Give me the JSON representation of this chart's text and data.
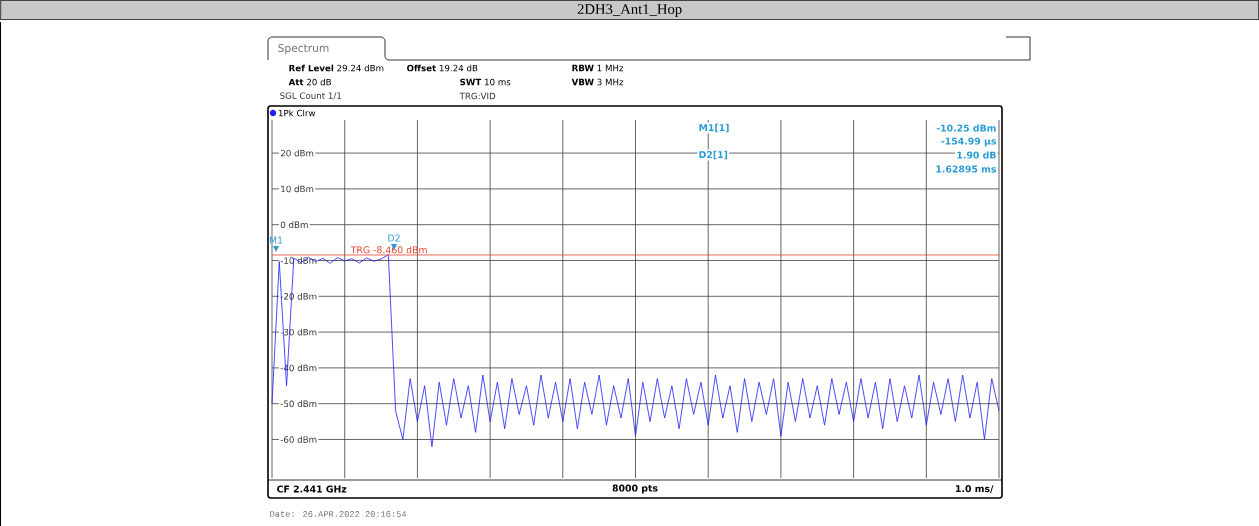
{
  "chart_data": {
    "type": "line",
    "title": "2DH3_Ant1_Hop",
    "categories": [
      null,
      null,
      null,
      null,
      null,
      null,
      null,
      null,
      null,
      null,
      null,
      null,
      null,
      null,
      null,
      null,
      null,
      null,
      null,
      null,
      null,
      null,
      null,
      null,
      null,
      null,
      null,
      null,
      null,
      null,
      null,
      null,
      null,
      null,
      null,
      null,
      null,
      null,
      null,
      null,
      null,
      null,
      null,
      null,
      null,
      null,
      null,
      null,
      null,
      null,
      null,
      null,
      null,
      null,
      null,
      null,
      null,
      null,
      null,
      null,
      null,
      null,
      null,
      null,
      null,
      null,
      null,
      null,
      null,
      null,
      null,
      null,
      null,
      null,
      null,
      null,
      null,
      null,
      null,
      null,
      null,
      null,
      null,
      null,
      null,
      null,
      null,
      null,
      null,
      null,
      null,
      null,
      null,
      null,
      null,
      null,
      null,
      null,
      null,
      null,
      null
    ],
    "series": [
      {
        "name": "1Pk Clrw",
        "color": "#1f1fff",
        "values": [
          -50,
          -10.3,
          -45,
          -9.3,
          -10.6,
          -9.1,
          -10.3,
          -9.4,
          -10.8,
          -9.2,
          -10.1,
          -9.5,
          -10.7,
          -9.3,
          -10.2,
          -9.6,
          -8.4,
          -52,
          -60,
          -43,
          -55,
          -45,
          -62,
          -44,
          -56,
          -43,
          -54,
          -45,
          -58,
          -42,
          -55,
          -44,
          -57,
          -43,
          -53,
          -45,
          -56,
          -42,
          -54,
          -44,
          -55,
          -43,
          -57,
          -44,
          -53,
          -42,
          -56,
          -45,
          -54,
          -43,
          -59,
          -44,
          -55,
          -43,
          -54,
          -45,
          -57,
          -43,
          -53,
          -44,
          -56,
          -42,
          -54,
          -45,
          -58,
          -43,
          -55,
          -44,
          -53,
          -43,
          -59,
          -44,
          -55,
          -43,
          -54,
          -45,
          -56,
          -43,
          -53,
          -44,
          -55,
          -43,
          -54,
          -44,
          -57,
          -43,
          -55,
          -45,
          -54,
          -42,
          -56,
          -44,
          -53,
          -43,
          -55,
          -42,
          -54,
          -44,
          -60,
          -43,
          -52
        ]
      }
    ],
    "ylim": [
      -70.76,
      29.24
    ],
    "yticks": [
      {
        "value": 20,
        "label": "20 dBm"
      },
      {
        "value": 10,
        "label": "10 dBm"
      },
      {
        "value": 0,
        "label": "0 dBm"
      },
      {
        "value": -10,
        "label": "-10 dBm"
      },
      {
        "value": -20,
        "label": "-20 dBm"
      },
      {
        "value": -30,
        "label": "-30 dBm"
      },
      {
        "value": -40,
        "label": "-40 dBm"
      },
      {
        "value": -50,
        "label": "-50 dBm"
      },
      {
        "value": -60,
        "label": "-60 dBm"
      }
    ],
    "tick_labels": "y",
    "grid": true,
    "legend": "top left",
    "ref_lines": [
      {
        "axis": "y",
        "value": -8.46,
        "label": "TRG -8.460 dBm",
        "color": "#e8412c"
      }
    ],
    "annotations": [
      "Spectrum",
      "**Ref Level** 29.24 dBm",
      "**Offset** 19.24 dB",
      "**RBW** 1 MHz",
      "**Att** 20 dB",
      "**SWT** 10 ms",
      "**VBW** 3 MHz",
      "SGL Count 1/1",
      "TRG:VID",
      "M1[1]",
      "-10.25 dBm",
      "-154.99 µs",
      "D2[1]",
      "1.90 dB",
      "1.62895 ms",
      "CF 2.441 GHz",
      "8000 pts",
      "1.0 ms/",
      "Date: 26.APR.2022  20:16:54",
      "M1",
      "D2"
    ]
  }
}
